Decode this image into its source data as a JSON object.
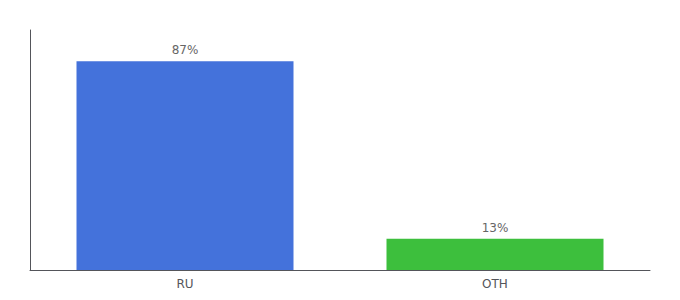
{
  "chart_data": {
    "type": "bar",
    "categories": [
      "RU",
      "OTH"
    ],
    "values": [
      87,
      13
    ],
    "value_labels": [
      "87%",
      "13%"
    ],
    "colors": [
      "#4472db",
      "#3dbf3d"
    ],
    "ylim": [
      0,
      100
    ],
    "grid": false,
    "tick_labels": "x",
    "data_labels": true
  }
}
